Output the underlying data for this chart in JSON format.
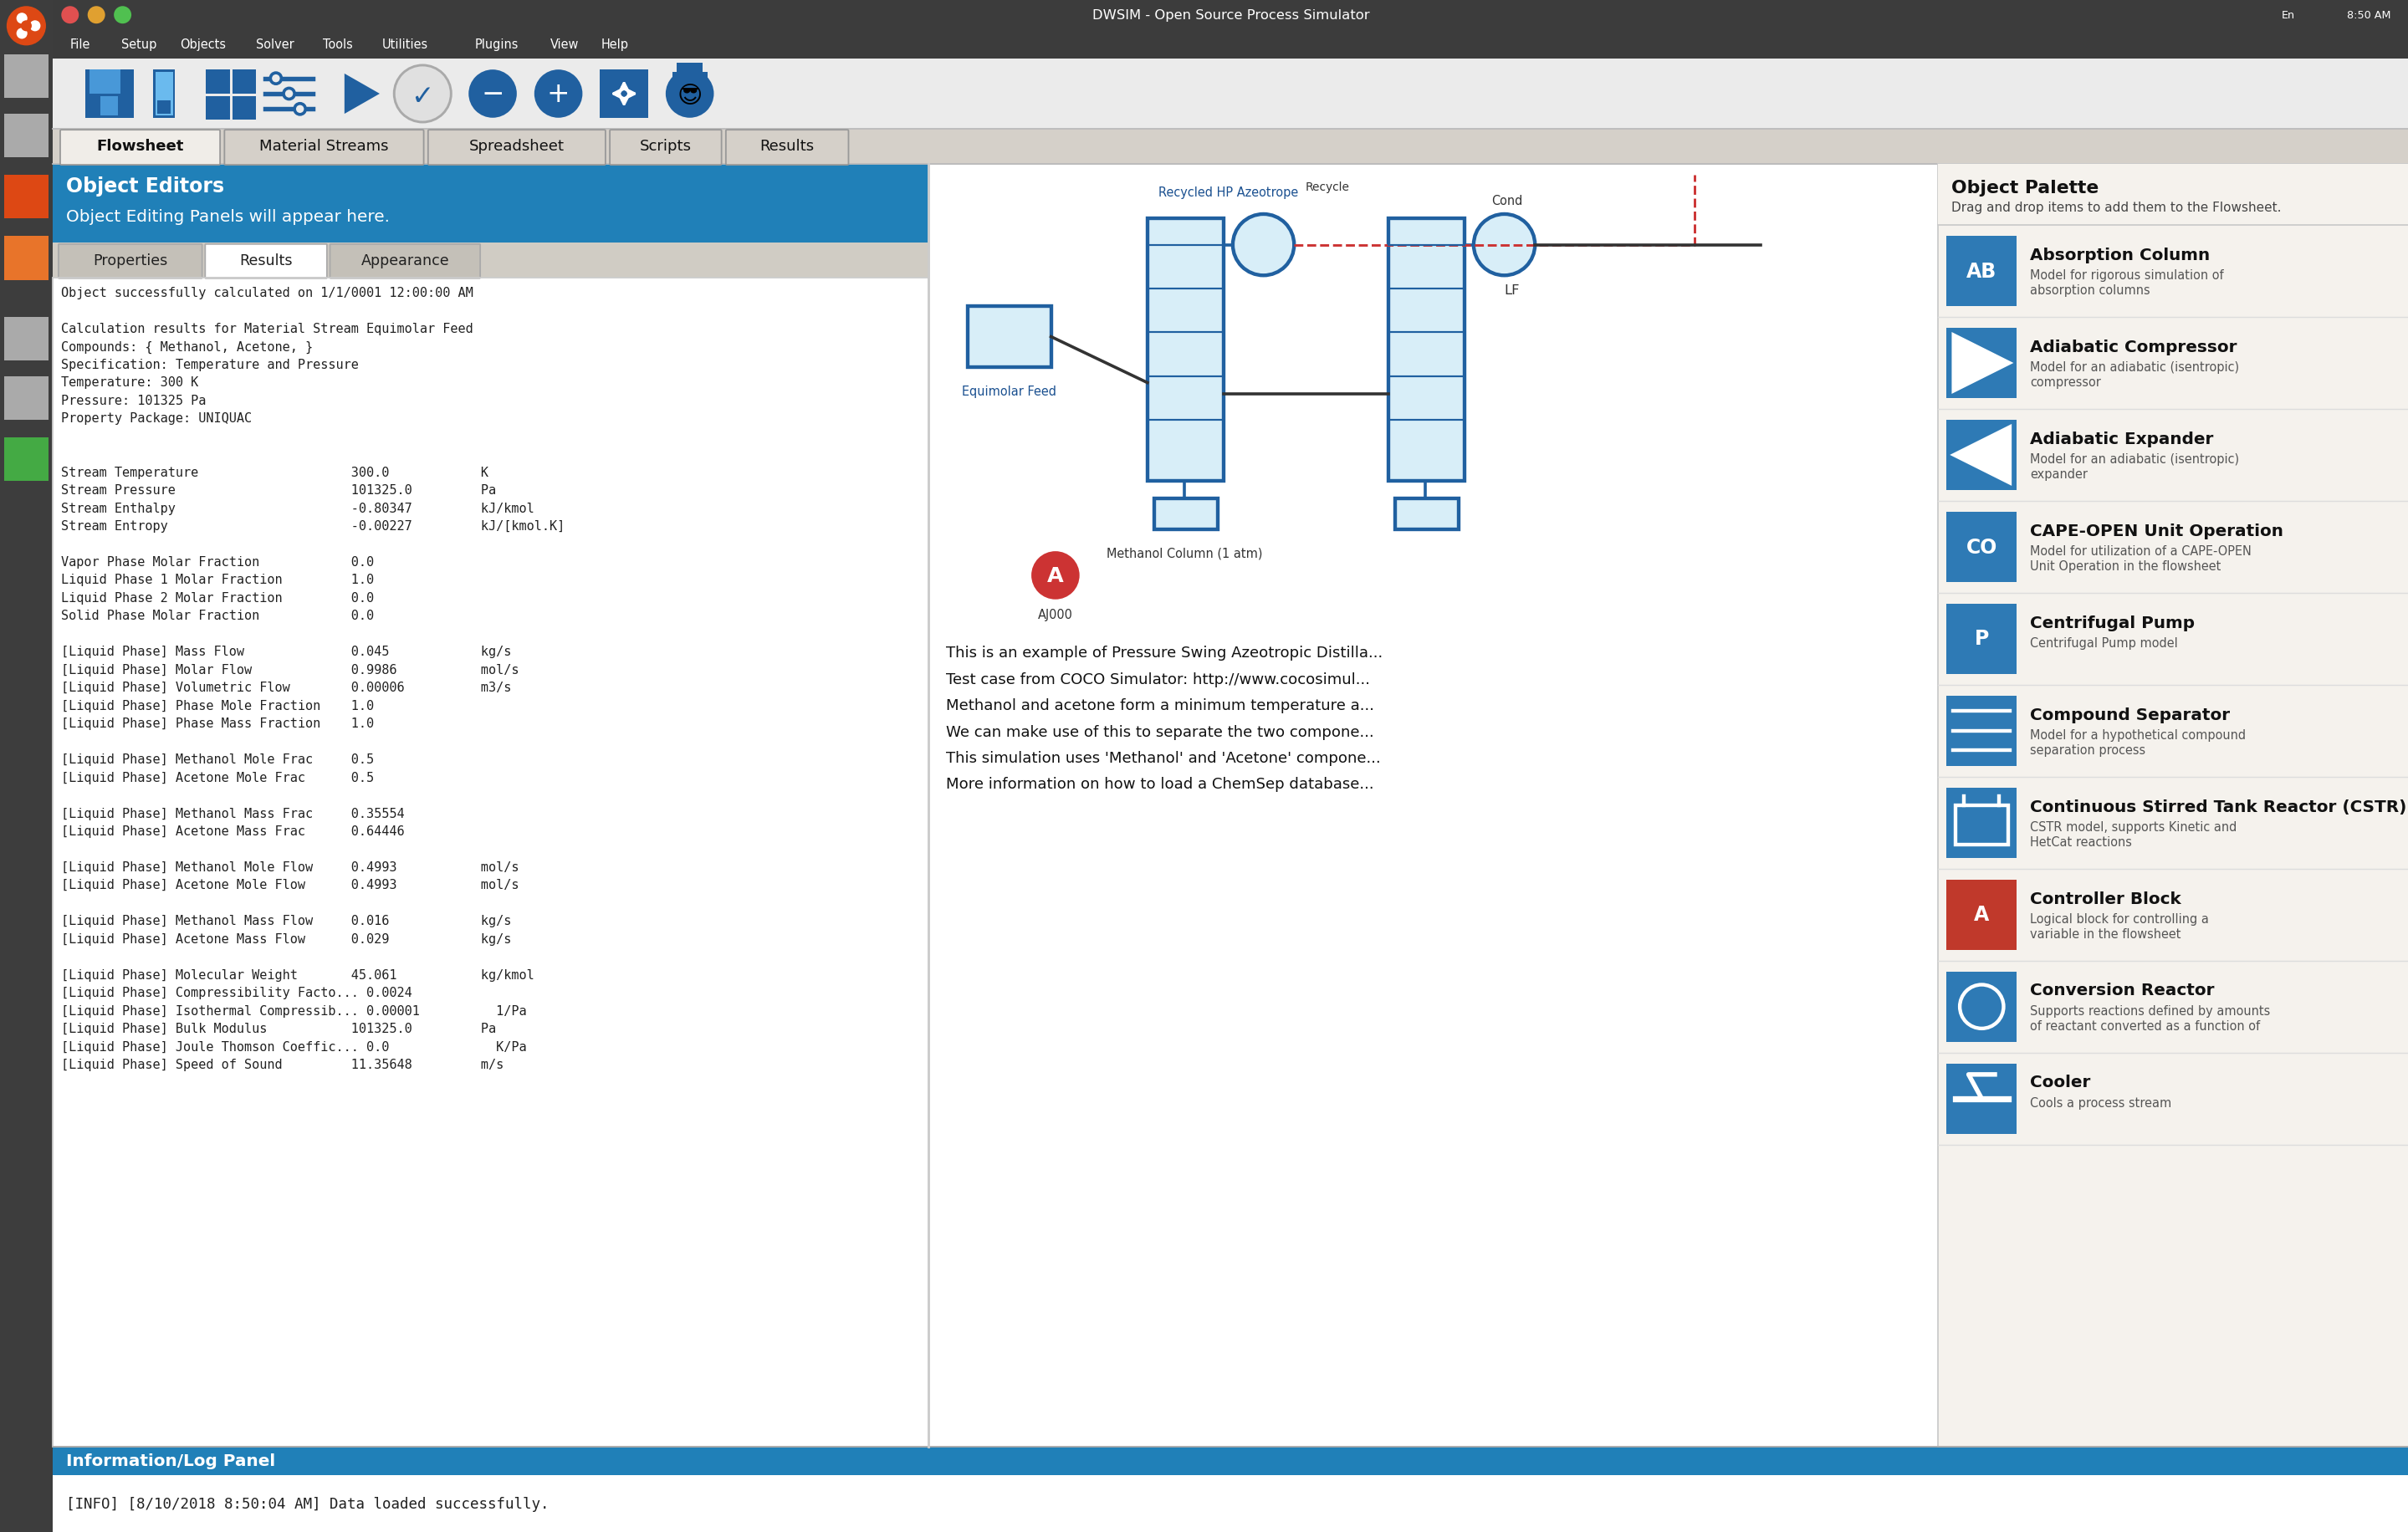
{
  "title": "DWSIM - Open Source Process Simulator",
  "bg_color": "#d4d0c8",
  "titlebar_bg": "#3c3c3c",
  "menu_items": [
    "File",
    "Setup",
    "Objects",
    "Solver",
    "Tools",
    "Utilities",
    "Plugins",
    "View",
    "Help"
  ],
  "tab_items": [
    "Flowsheet",
    "Material Streams",
    "Spreadsheet",
    "Scripts",
    "Results"
  ],
  "active_tab": "Flowsheet",
  "object_editors_bg": "#2080b8",
  "object_editors_text": "Object Editors",
  "object_editing_text": "Object Editing Panels will appear here.",
  "sub_tabs": [
    "Properties",
    "Results",
    "Appearance"
  ],
  "active_sub_tab": "Results",
  "results_text_lines": [
    "Object successfully calculated on 1/1/0001 12:00:00 AM",
    "",
    "Calculation results for Material Stream Equimolar Feed",
    "Compounds: { Methanol, Acetone, }",
    "Specification: Temperature and Pressure",
    "Temperature: 300 K",
    "Pressure: 101325 Pa",
    "Property Package: UNIQUAC",
    "",
    "",
    "Stream Temperature                    300.0            K",
    "Stream Pressure                       101325.0         Pa",
    "Stream Enthalpy                       -0.80347         kJ/kmol",
    "Stream Entropy                        -0.00227         kJ/[kmol.K]",
    "",
    "Vapor Phase Molar Fraction            0.0",
    "Liquid Phase 1 Molar Fraction         1.0",
    "Liquid Phase 2 Molar Fraction         0.0",
    "Solid Phase Molar Fraction            0.0",
    "",
    "[Liquid Phase] Mass Flow              0.045            kg/s",
    "[Liquid Phase] Molar Flow             0.9986           mol/s",
    "[Liquid Phase] Volumetric Flow        0.00006          m3/s",
    "[Liquid Phase] Phase Mole Fraction    1.0",
    "[Liquid Phase] Phase Mass Fraction    1.0",
    "",
    "[Liquid Phase] Methanol Mole Frac     0.5",
    "[Liquid Phase] Acetone Mole Frac      0.5",
    "",
    "[Liquid Phase] Methanol Mass Frac     0.35554",
    "[Liquid Phase] Acetone Mass Frac      0.64446",
    "",
    "[Liquid Phase] Methanol Mole Flow     0.4993           mol/s",
    "[Liquid Phase] Acetone Mole Flow      0.4993           mol/s",
    "",
    "[Liquid Phase] Methanol Mass Flow     0.016            kg/s",
    "[Liquid Phase] Acetone Mass Flow      0.029            kg/s",
    "",
    "[Liquid Phase] Molecular Weight       45.061           kg/kmol",
    "[Liquid Phase] Compressibility Facto... 0.0024",
    "[Liquid Phase] Isothermal Compressib... 0.00001          1/Pa",
    "[Liquid Phase] Bulk Modulus           101325.0         Pa",
    "[Liquid Phase] Joule Thomson Coeffic... 0.0              K/Pa",
    "[Liquid Phase] Speed of Sound         11.35648         m/s"
  ],
  "info_panel_text": "[INFO] [8/10/2018 8:50:04 AM] Data loaded successfully.",
  "info_panel_bg": "#2080b8",
  "object_palette_title": "Object Palette",
  "object_palette_subtitle": "Drag and drop items to add them to the Flowsheet.",
  "palette_items": [
    {
      "name": "Absorption Column",
      "desc": "Model for rigorous simulation of absorption columns",
      "icon_color": "#2e7ab5",
      "icon_text": "AB"
    },
    {
      "name": "Adiabatic Compressor",
      "desc": "Model for an adiabatic (isentropic) compressor",
      "icon_color": "#2e7ab5",
      "icon_type": "compressor"
    },
    {
      "name": "Adiabatic Expander",
      "desc": "Model for an adiabatic (isentropic) expander",
      "icon_color": "#2e7ab5",
      "icon_type": "expander"
    },
    {
      "name": "CAPE-OPEN Unit Operation",
      "desc": "Model for utilization of a CAPE-OPEN Unit Operation in the flowsheet",
      "icon_color": "#2e7ab5",
      "icon_text": "CO"
    },
    {
      "name": "Centrifugal Pump",
      "desc": "Centrifugal Pump model",
      "icon_color": "#2e7ab5",
      "icon_text": "P"
    },
    {
      "name": "Compound Separator",
      "desc": "Model for a hypothetical compound separation process",
      "icon_color": "#2e7ab5",
      "icon_type": "separator"
    },
    {
      "name": "Continuous Stirred Tank Reactor (CSTR)",
      "desc": "CSTR model, supports Kinetic and HetCat reactions",
      "icon_color": "#2e7ab5",
      "icon_type": "cstr"
    },
    {
      "name": "Controller Block",
      "desc": "Logical block for controlling a variable in the flowsheet",
      "icon_color": "#c0392b",
      "icon_text": "A"
    },
    {
      "name": "Conversion Reactor",
      "desc": "Supports reactions defined by amounts of reactant converted as a function of temperature",
      "icon_color": "#2e7ab5",
      "icon_type": "reactor"
    },
    {
      "name": "Cooler",
      "desc": "Cools a process stream",
      "icon_color": "#2e7ab5",
      "icon_type": "cooler"
    }
  ],
  "window_control_colors": [
    "#e05050",
    "#e0a030",
    "#50c050"
  ],
  "sidebar_bg": "#3d3d3d",
  "sidebar_icon_colors": [
    "#888888",
    "#c0c0c0",
    "#dd4814",
    "#e8742a",
    "#888888",
    "#888888",
    "#ddaa00",
    "#888888"
  ],
  "toolbar_bg": "#ebebeb",
  "tab_bar_bg": "#d5d0c9",
  "active_tab_bg": "#f0ede8",
  "inactive_tab_bg": "#c8c5be",
  "panel_left_bg": "#ffffff",
  "flowsheet_bg": "#ffffff",
  "palette_bg": "#f5f2ed"
}
